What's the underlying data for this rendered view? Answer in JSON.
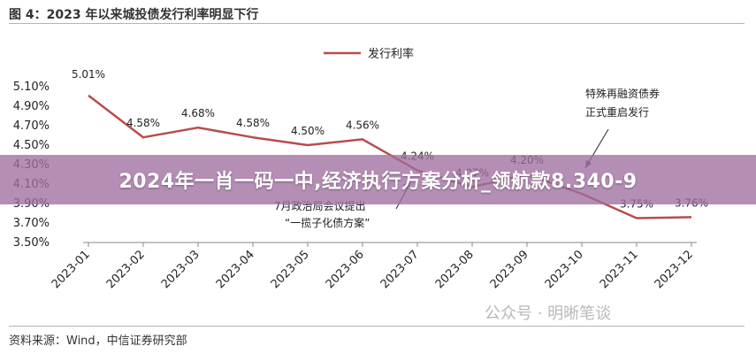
{
  "figure_title": "图 4：2023 年以来城投债发行利率明显下行",
  "source_note": "资料来源：Wind，中信证券研究部",
  "watermark": "公众号 · 明晰笔谈",
  "overlay_banner": "2024年一肖一码一中,经济执行方案分析_领航款8.340-9",
  "colors": {
    "series_line": "#b84c4c",
    "axis": "#888888",
    "annotation": "#444444",
    "banner": "#a06ea0"
  },
  "chart_data": {
    "type": "line",
    "title": "图 4：2023 年以来城投债发行利率明显下行",
    "xlabel": "",
    "ylabel": "",
    "categories": [
      "2023-01",
      "2023-02",
      "2023-03",
      "2023-04",
      "2023-05",
      "2023-06",
      "2023-07",
      "2023-08",
      "2023-09",
      "2023-10",
      "2023-11",
      "2023-12"
    ],
    "series": [
      {
        "name": "发行利率",
        "values": [
          5.01,
          4.58,
          4.68,
          4.58,
          4.5,
          4.56,
          4.24,
          4.07,
          4.2,
          4.0,
          3.75,
          3.76
        ]
      }
    ],
    "data_labels": [
      "5.01%",
      "4.58%",
      "4.68%",
      "4.58%",
      "4.50%",
      "4.56%",
      "4.24%",
      "4.07%",
      "4.20%",
      "",
      "3.75%",
      "3.76%"
    ],
    "y_ticks": [
      3.5,
      3.7,
      3.9,
      4.1,
      4.3,
      4.5,
      4.7,
      4.9,
      5.1
    ],
    "y_tick_labels": [
      "3.50%",
      "3.70%",
      "3.90%",
      "4.10%",
      "4.30%",
      "4.50%",
      "4.70%",
      "4.90%",
      "5.10%"
    ],
    "ylim": [
      3.5,
      5.1
    ],
    "grid": false,
    "legend_position": "top-center",
    "annotations": [
      {
        "lines": [
          "7月政治局会议提出",
          "“一揽子化债方案”"
        ],
        "target_category": "2023-07",
        "target_value": 4.17
      },
      {
        "lines": [
          "特殊再融资债券",
          "正式重启发行"
        ],
        "target_category": "2023-10",
        "target_value": 4.12
      }
    ]
  }
}
